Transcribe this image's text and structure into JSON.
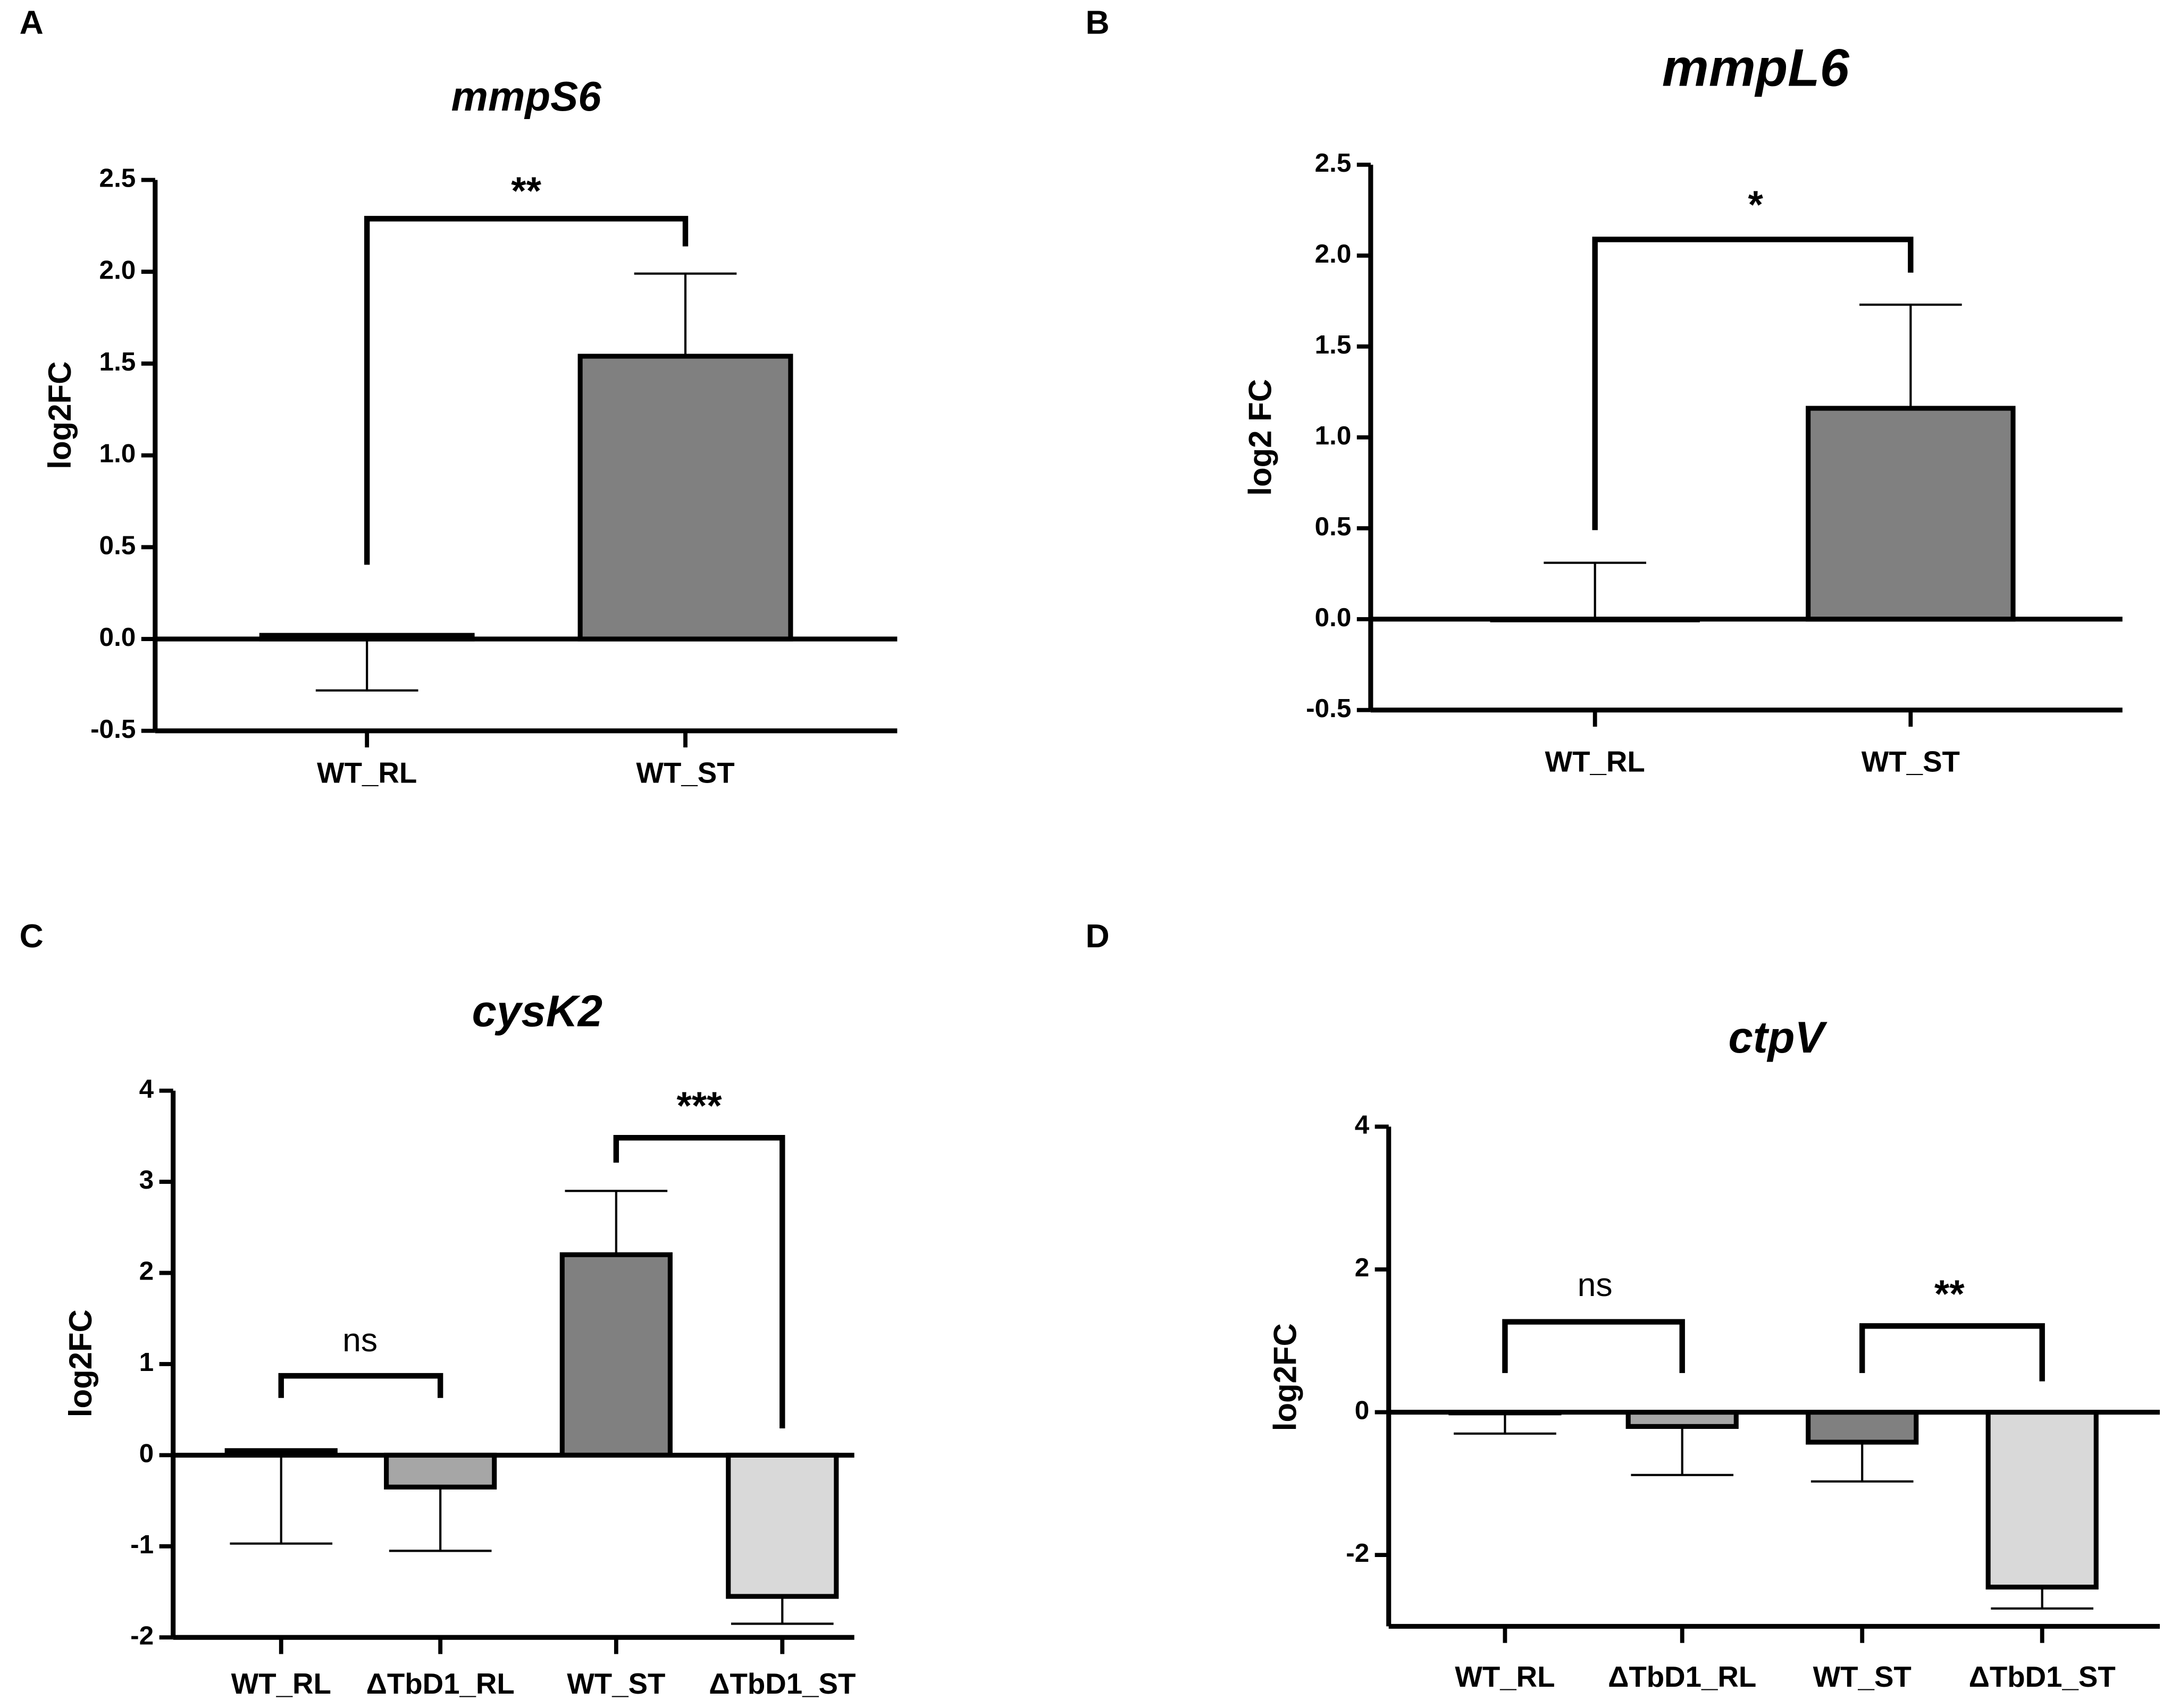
{
  "chart_data": [
    {
      "type": "bar",
      "panel_label": "A",
      "title": "mmpS6",
      "y_label": "log2FC",
      "categories": [
        "WT_RL",
        "WT_ST"
      ],
      "values": [
        0.02,
        1.54
      ],
      "error_ends": [
        -0.28,
        1.99
      ],
      "colors": [
        "#808080",
        "#808080"
      ],
      "ylim": [
        -0.5,
        2.5
      ],
      "yticks": [
        -0.5,
        {
          "value": 0,
          "label": "0.0"
        },
        0.5,
        {
          "value": 1,
          "label": "1.0"
        },
        1.5,
        {
          "value": 2,
          "label": "2.0"
        },
        2.5
      ],
      "annotations": [
        "**"
      ]
    },
    {
      "type": "bar",
      "panel_label": "B",
      "title": "mmpL6",
      "y_label": "log2 FC",
      "categories": [
        "WT_RL",
        "WT_ST"
      ],
      "values": [
        0,
        1.16
      ],
      "error_ends": [
        0.31,
        1.73
      ],
      "colors": [
        "#808080",
        "#808080"
      ],
      "ylim": [
        -0.5,
        2.5
      ],
      "yticks": [
        -0.5,
        {
          "value": 0,
          "label": "0.0"
        },
        0.5,
        {
          "value": 1,
          "label": "1.0"
        },
        1.5,
        {
          "value": 2,
          "label": "2.0"
        },
        2.5
      ],
      "annotations": [
        "*"
      ]
    },
    {
      "type": "bar",
      "panel_label": "C",
      "title": "cysK2",
      "y_label": "log2FC",
      "categories": [
        "WT_RL",
        "ΔTbD1_RL",
        "WT_ST",
        "ΔTbD1_ST"
      ],
      "values": [
        0.05,
        -0.35,
        2.2,
        -1.55
      ],
      "error_ends": [
        -0.97,
        -1.05,
        2.9,
        -1.85
      ],
      "colors": [
        "#808080",
        "#a6a6a6",
        "#808080",
        "#d9d9d9"
      ],
      "ylim": [
        -2,
        4
      ],
      "yticks": [
        -2,
        -1,
        0,
        1,
        2,
        3,
        4
      ],
      "annotations": [
        "ns",
        "***"
      ]
    },
    {
      "type": "bar",
      "panel_label": "D",
      "title": "ctpV",
      "y_label": "log2FC",
      "categories": [
        "WT_RL",
        "ΔTbD1_RL",
        "WT_ST",
        "ΔTbD1_ST"
      ],
      "values": [
        0,
        -0.2,
        -0.42,
        -2.45
      ],
      "error_ends": [
        -0.3,
        -0.88,
        -0.97,
        -2.75
      ],
      "colors": [
        "#808080",
        "#a6a6a6",
        "#808080",
        "#d9d9d9"
      ],
      "ylim": [
        -3,
        4
      ],
      "yticks": [
        -2,
        0,
        2,
        4
      ],
      "annotations": [
        "ns",
        "**"
      ]
    }
  ]
}
